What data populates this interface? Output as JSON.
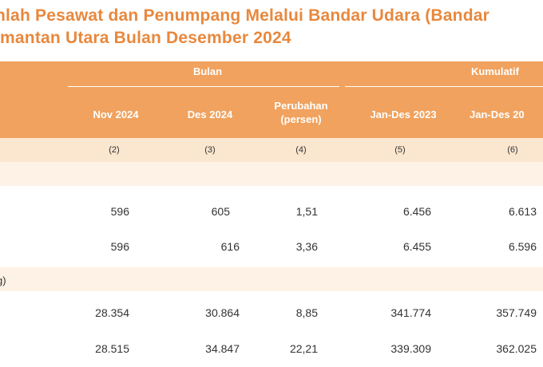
{
  "title": {
    "line1": "nlah Pesawat dan Penumpang Melalui Bandar Udara (Bandar",
    "line2": "imantan Utara Bulan Desember 2024"
  },
  "header": {
    "group_bulan": "Bulan",
    "group_kumulatif": "Kumulatif",
    "columns": [
      "Nov 2024",
      "Des 2024",
      "Perubahan\n(persen)",
      "Jan-Des 2023",
      "Jan-Des 20"
    ],
    "numbers": [
      "(2)",
      "(3)",
      "(4)",
      "(5)",
      "(6)"
    ]
  },
  "rows": [
    {
      "label": "",
      "values": [
        "",
        "",
        "",
        "",
        ""
      ]
    },
    {
      "label": "",
      "values": [
        "596",
        "605",
        "1,51",
        "6.456",
        "6.613"
      ]
    },
    {
      "label": "",
      "values": [
        "596",
        "616",
        "3,36",
        "6.455",
        "6.596"
      ]
    },
    {
      "label": "g)",
      "values": [
        "",
        "",
        "",
        "",
        ""
      ]
    },
    {
      "label": "",
      "values": [
        "28.354",
        "30.864",
        "8,85",
        "341.774",
        "357.749"
      ]
    },
    {
      "label": "",
      "values": [
        "28.515",
        "34.847",
        "22,21",
        "339.309",
        "362.025"
      ]
    }
  ]
}
